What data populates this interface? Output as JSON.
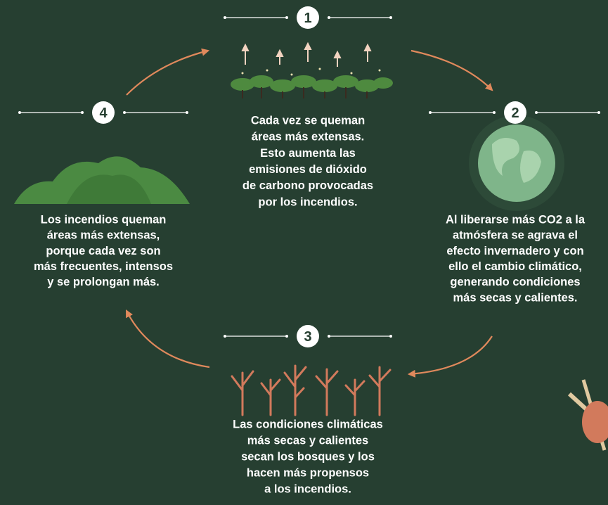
{
  "nodes": [
    {
      "number": "1",
      "lines": [
        "Cada vez se queman",
        "áreas más extensas.",
        "Esto aumenta las",
        "emisiones de dióxido",
        "de carbono provocadas",
        "por los incendios."
      ]
    },
    {
      "number": "2",
      "lines": [
        "Al liberarse más CO2 a la",
        "atmósfera se agrava el",
        "efecto invernadero y con",
        "ello el cambio climático,",
        "generando condiciones",
        "más secas y calientes."
      ]
    },
    {
      "number": "3",
      "lines": [
        "Las condiciones climáticas",
        "más secas y calientes",
        "secan los bosques y los",
        "hacen más propensos",
        "a los incendios."
      ]
    },
    {
      "number": "4",
      "lines": [
        "Los incendios queman",
        "áreas más extensas,",
        "porque cada vez son",
        "más frecuentes, intensos",
        "y se prolongan más."
      ]
    }
  ]
}
